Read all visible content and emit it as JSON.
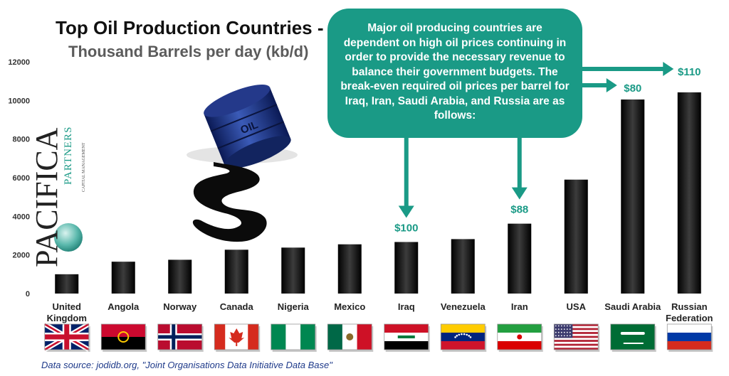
{
  "title": "Top Oil Production Countries -",
  "subtitle": "Thousand Barrels per day (kb/d)",
  "callout_text": "Major oil producing countries are dependent on high oil prices continuing in order to provide the necessary revenue to balance their government budgets.  The break-even required oil prices per barrel for Iraq, Iran, Saudi Arabia, and Russia are as follows:",
  "source_text": "Data source:  jodidb.org, \"Joint Organisations Data Initiative Data Base\"",
  "logo": {
    "name": "PACIFICA",
    "partners": "PARTNERS",
    "tagline": "CAPITAL MANAGEMENT"
  },
  "barrel_label": "OIL",
  "colors": {
    "accent": "#1a9a86",
    "bar": "#111111",
    "axis_text": "#333333",
    "source": "#1e3a8a"
  },
  "chart_data": {
    "type": "bar",
    "categories": [
      "United Kingdom",
      "Angola",
      "Norway",
      "Canada",
      "Nigeria",
      "Mexico",
      "Iraq",
      "Venezuela",
      "Iran",
      "USA",
      "Saudi Arabia",
      "Russian Federation"
    ],
    "category_lines": [
      [
        "United",
        "Kingdom"
      ],
      [
        "Angola"
      ],
      [
        "Norway"
      ],
      [
        "Canada"
      ],
      [
        "Nigeria"
      ],
      [
        "Mexico"
      ],
      [
        "Iraq"
      ],
      [
        "Venezuela"
      ],
      [
        "Iran"
      ],
      [
        "USA"
      ],
      [
        "Saudi Arabia"
      ],
      [
        "Russian",
        "Federation"
      ]
    ],
    "values": [
      1000,
      1650,
      1750,
      2270,
      2380,
      2550,
      2670,
      2820,
      3620,
      5900,
      10050,
      10420
    ],
    "ylim": [
      0,
      12000
    ],
    "yticks": [
      0,
      2000,
      4000,
      6000,
      8000,
      10000,
      12000
    ],
    "grid": false,
    "annotations": [
      {
        "category": "Iraq",
        "label": "$100"
      },
      {
        "category": "Iran",
        "label": "$88"
      },
      {
        "category": "Saudi Arabia",
        "label": "$80"
      },
      {
        "category": "Russian Federation",
        "label": "$110"
      }
    ],
    "flags": [
      "uk-flag",
      "angola-flag",
      "norway-flag",
      "canada-flag",
      "nigeria-flag",
      "mexico-flag",
      "iraq-flag",
      "venezuela-flag",
      "iran-flag",
      "usa-flag",
      "saudi-flag",
      "russia-flag"
    ]
  }
}
